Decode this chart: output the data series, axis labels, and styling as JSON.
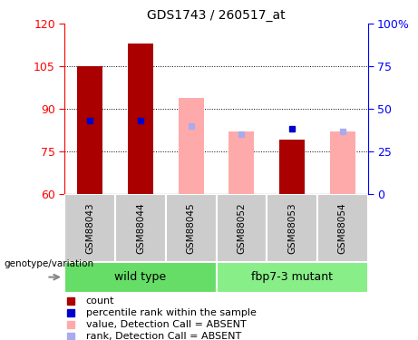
{
  "title": "GDS1743 / 260517_at",
  "samples": [
    "GSM88043",
    "GSM88044",
    "GSM88045",
    "GSM88052",
    "GSM88053",
    "GSM88054"
  ],
  "bar_values": [
    105.0,
    113.0,
    94.0,
    82.0,
    79.0,
    82.0
  ],
  "rank_values": [
    86.0,
    86.0,
    84.0,
    81.0,
    83.0,
    82.0
  ],
  "absent": [
    false,
    false,
    true,
    true,
    false,
    true
  ],
  "ylim": [
    60,
    120
  ],
  "ylim_right": [
    0,
    100
  ],
  "yticks_left": [
    60,
    75,
    90,
    105,
    120
  ],
  "yticks_right": [
    0,
    25,
    50,
    75,
    100
  ],
  "color_present_bar": "#AA0000",
  "color_absent_bar": "#FFAAAA",
  "color_present_rank": "#0000CC",
  "color_absent_rank": "#AAAAEE",
  "color_wt_bg": "#66DD66",
  "color_mut_bg": "#88EE88",
  "color_sample_bg": "#CCCCCC",
  "wt_label": "wild type",
  "mut_label": "fbp7-3 mutant",
  "genotype_label": "genotype/variation",
  "legend_items": [
    {
      "label": "count",
      "color": "#AA0000"
    },
    {
      "label": "percentile rank within the sample",
      "color": "#0000CC"
    },
    {
      "label": "value, Detection Call = ABSENT",
      "color": "#FFAAAA"
    },
    {
      "label": "rank, Detection Call = ABSENT",
      "color": "#AAAAEE"
    }
  ]
}
